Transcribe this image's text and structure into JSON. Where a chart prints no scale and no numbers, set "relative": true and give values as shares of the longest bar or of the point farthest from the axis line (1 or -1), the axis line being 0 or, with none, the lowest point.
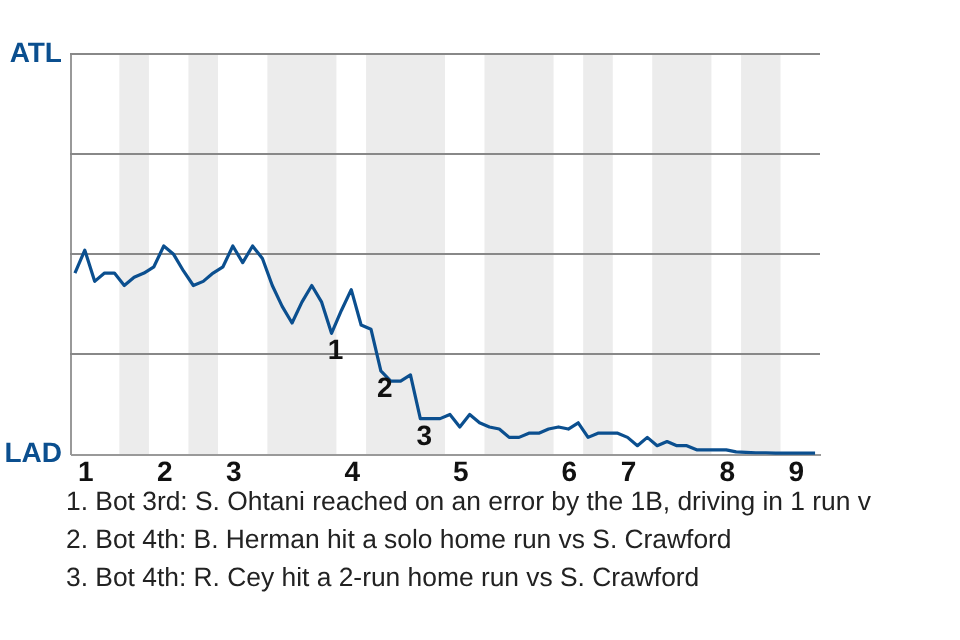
{
  "chart_data": {
    "type": "line",
    "relative": true,
    "categories": [
      null,
      "1",
      null,
      null,
      null,
      null,
      null,
      null,
      null,
      "2",
      null,
      null,
      null,
      null,
      null,
      null,
      "3",
      null,
      null,
      null,
      null,
      null,
      null,
      null,
      null,
      null,
      null,
      null,
      "4",
      null,
      null,
      null,
      null,
      null,
      null,
      null,
      null,
      null,
      null,
      "5",
      null,
      null,
      null,
      null,
      null,
      null,
      null,
      null,
      null,
      null,
      "6",
      null,
      null,
      null,
      null,
      null,
      "7",
      null,
      null,
      null,
      null,
      null,
      null,
      null,
      null,
      null,
      "8",
      null,
      null,
      null,
      null,
      null,
      null,
      "9",
      null,
      null
    ],
    "series": [
      {
        "color": "#0b4f8f",
        "values": [
          0.87,
          0.98,
          0.83,
          0.87,
          0.87,
          0.81,
          0.85,
          0.87,
          0.9,
          1,
          0.96,
          0.88,
          0.81,
          0.83,
          0.87,
          0.9,
          1,
          0.92,
          1,
          0.94,
          0.81,
          0.71,
          0.63,
          0.73,
          0.81,
          0.73,
          0.58,
          0.69,
          0.79,
          0.62,
          0.6,
          0.4,
          0.35,
          0.35,
          0.38,
          0.17,
          0.17,
          0.17,
          0.19,
          0.13,
          0.19,
          0.15,
          0.13,
          0.12,
          0.08,
          0.08,
          0.1,
          0.1,
          0.12,
          0.13,
          0.12,
          0.15,
          0.08,
          0.1,
          0.1,
          0.1,
          0.08,
          0.04,
          0.08,
          0.04,
          0.06,
          0.04,
          0.04,
          0.02,
          0.02,
          0.02,
          0.02,
          0.01,
          0.008,
          0.006,
          0.006,
          0.004,
          0.004,
          0.004,
          0.004,
          0.004
        ]
      }
    ],
    "ref_lines": [
      {
        "axis": "y",
        "value": 0.481,
        "color": "#888888"
      },
      {
        "axis": "y",
        "value": 0.962,
        "color": "#888888"
      },
      {
        "axis": "y",
        "value": 1.442,
        "color": "#888888"
      },
      {
        "axis": "y",
        "value": 1.923,
        "color": "#888888"
      }
    ],
    "annotations": [
      {
        "text": "1",
        "y": 0.58
      },
      {
        "text": "2",
        "y": 0.4
      },
      {
        "text": "3",
        "y": 0.17
      },
      "ATL",
      "LAD",
      "1. Bot 3rd: S. Ohtani reached on an error by the 1B, driving in 1 run v",
      "2. Bot 4th: B. Herman hit a solo home run vs S. Crawford",
      "3. Bot 4th: R. Cey hit a 2-run home run vs S. Crawford"
    ]
  }
}
